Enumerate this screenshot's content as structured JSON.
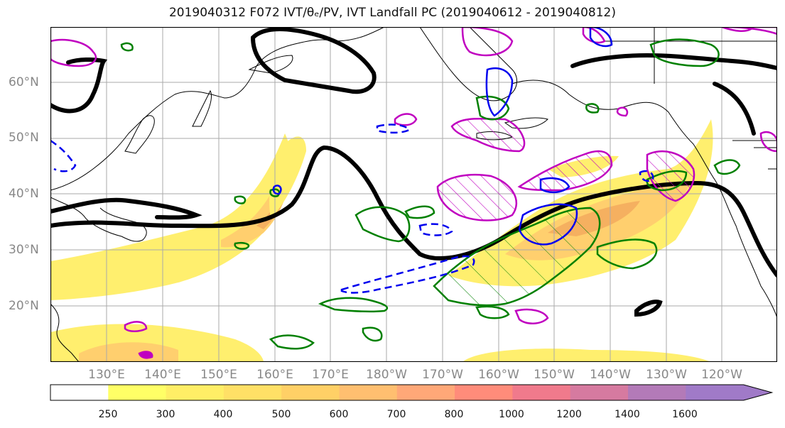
{
  "title": "2019040312 F072 IVT/θₑ/PV, IVT Landfall PC (2019040612 - 2019040812)",
  "latitudes": [
    "60°N",
    "50°N",
    "40°N",
    "30°N",
    "20°N"
  ],
  "longitudes": [
    "130°E",
    "140°E",
    "150°E",
    "160°E",
    "170°E",
    "180°W",
    "170°W",
    "160°W",
    "150°W",
    "140°W",
    "130°W",
    "120°W"
  ],
  "colorbar": {
    "ticks": [
      "250",
      "300",
      "400",
      "500",
      "600",
      "700",
      "800",
      "1000",
      "1200",
      "1400",
      "1600"
    ],
    "colors": [
      "#ffff66",
      "#ffee66",
      "#ffe066",
      "#ffd066",
      "#ffbf70",
      "#ffa878",
      "#ff8c7a",
      "#f07a8c",
      "#d67aa0",
      "#b37ab8",
      "#a07ac8"
    ]
  },
  "colors": {
    "ivt_low": "#ffef6e",
    "ivt_mid": "#ffcf6e",
    "ivt_high": "#f5a060",
    "theta_e": "#000000",
    "pv_pos": "#008000",
    "pv_neg": "#0000ee",
    "landfall": "#c000c0"
  }
}
